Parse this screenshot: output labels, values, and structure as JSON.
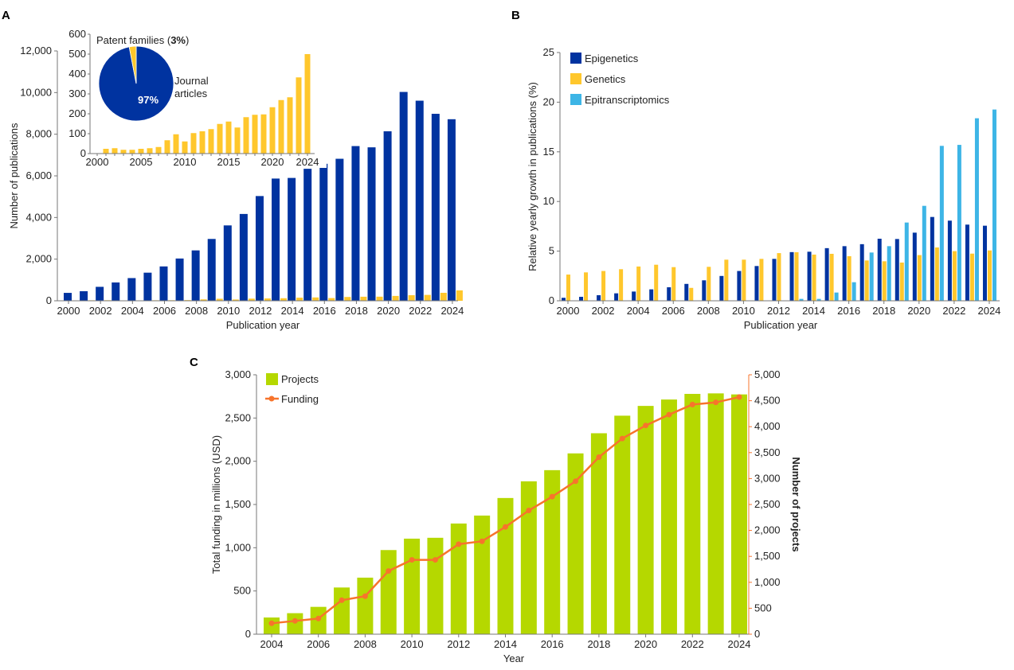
{
  "panels": {
    "a": "A",
    "b": "B",
    "c": "C"
  },
  "colors": {
    "navy": "#0033a0",
    "yellow": "#ffc72c",
    "lightblue": "#3db5e6",
    "green": "#b5d800",
    "orange": "#f7742c"
  },
  "chart_data": [
    {
      "id": "A",
      "type": "bar",
      "xlabel": "Publication year",
      "ylabel": "Number of publications",
      "ylim": [
        0,
        12000
      ],
      "yticks": [
        "0",
        "2,000",
        "4,000",
        "6,000",
        "8,000",
        "10,000",
        "12,000"
      ],
      "xticks": [
        "2000",
        "2002",
        "2004",
        "2006",
        "2008",
        "2010",
        "2012",
        "2014",
        "2016",
        "2018",
        "2020",
        "2022",
        "2024"
      ],
      "categories": [
        2000,
        2001,
        2002,
        2003,
        2004,
        2005,
        2006,
        2007,
        2008,
        2009,
        2010,
        2011,
        2012,
        2013,
        2014,
        2015,
        2016,
        2017,
        2018,
        2019,
        2020,
        2021,
        2022,
        2023,
        2024
      ],
      "series": [
        {
          "color": "#0033a0",
          "values": [
            380,
            460,
            670,
            880,
            1090,
            1350,
            1650,
            2030,
            2420,
            2970,
            3620,
            4170,
            5030,
            5870,
            5900,
            6340,
            6580,
            6820,
            7430,
            7370,
            8140,
            10030,
            9610,
            8980,
            8720
          ]
        },
        {
          "color": "#ffc72c",
          "values": [
            0,
            24,
            27,
            19,
            19,
            24,
            27,
            33,
            67,
            97,
            61,
            103,
            112,
            123,
            149,
            161,
            131,
            183,
            195,
            197,
            233,
            269,
            283,
            383,
            500
          ]
        }
      ],
      "grid": false
    },
    {
      "id": "A-inset-bar",
      "type": "bar",
      "ylim": [
        0,
        600
      ],
      "yticks": [
        "0",
        "100",
        "200",
        "300",
        "400",
        "500",
        "600"
      ],
      "xticks": [
        "2000",
        "2005",
        "2010",
        "2015",
        "2020",
        "2024"
      ],
      "categories": [
        2000,
        2001,
        2002,
        2003,
        2004,
        2005,
        2006,
        2007,
        2008,
        2009,
        2010,
        2011,
        2012,
        2013,
        2014,
        2015,
        2016,
        2017,
        2018,
        2019,
        2020,
        2021,
        2022,
        2023,
        2024
      ],
      "values": [
        0,
        24,
        27,
        19,
        19,
        24,
        27,
        33,
        67,
        97,
        61,
        103,
        112,
        123,
        149,
        161,
        131,
        183,
        195,
        197,
        233,
        269,
        283,
        383,
        500
      ],
      "color": "#ffc72c"
    },
    {
      "id": "A-inset-pie",
      "type": "pie",
      "slices": [
        {
          "label": "Journal articles",
          "label_lines": [
            "Journal",
            "articles"
          ],
          "value": 97,
          "value_label": "97%",
          "color": "#0033a0"
        },
        {
          "label": "Patent families",
          "label_prefix": "Patent families (",
          "value": 3,
          "value_label": "3%",
          "label_suffix": ")",
          "color": "#ffc72c"
        }
      ]
    },
    {
      "id": "B",
      "type": "bar",
      "xlabel": "Publication year",
      "ylabel": "Relative yearly growth in publications (%)",
      "ylim": [
        0,
        25
      ],
      "yticks": [
        "0",
        "5",
        "10",
        "15",
        "20",
        "25"
      ],
      "xticks": [
        "2000",
        "2002",
        "2004",
        "2006",
        "2008",
        "2010",
        "2012",
        "2014",
        "2016",
        "2018",
        "2020",
        "2022",
        "2024"
      ],
      "categories": [
        2000,
        2001,
        2002,
        2003,
        2004,
        2005,
        2006,
        2007,
        2008,
        2009,
        2010,
        2011,
        2012,
        2013,
        2014,
        2015,
        2016,
        2017,
        2018,
        2019,
        2020,
        2021,
        2022,
        2023,
        2024
      ],
      "legend": "top-left",
      "series": [
        {
          "name": "Epigenetics",
          "color": "#0033a0",
          "values": [
            0.3,
            0.4,
            0.56,
            0.75,
            0.93,
            1.15,
            1.36,
            1.7,
            2.06,
            2.5,
            3.0,
            3.5,
            4.22,
            4.9,
            4.94,
            5.3,
            5.5,
            5.7,
            6.25,
            6.22,
            6.86,
            8.44,
            8.07,
            7.67,
            7.56
          ]
        },
        {
          "name": "Genetics",
          "color": "#ffc72c",
          "values": [
            2.64,
            2.86,
            3.0,
            3.18,
            3.45,
            3.63,
            3.39,
            1.3,
            3.42,
            4.14,
            4.14,
            4.22,
            4.8,
            4.89,
            4.65,
            4.73,
            4.49,
            4.06,
            3.98,
            3.85,
            4.6,
            5.37,
            5.0,
            4.75,
            5.07
          ]
        },
        {
          "name": "Epitranscriptomics",
          "color": "#3db5e6",
          "values": [
            0,
            0,
            0,
            0,
            0,
            0,
            0,
            0,
            0,
            0,
            0,
            0,
            0,
            0.19,
            0.19,
            0.83,
            1.87,
            4.86,
            5.5,
            7.88,
            9.56,
            15.6,
            15.7,
            18.38,
            19.26
          ]
        }
      ]
    },
    {
      "id": "C",
      "type": "bar+line",
      "xlabel": "Year",
      "ylabel": "Total funding in millions (USD)",
      "ylabel_right": "Number of projects",
      "ylim": [
        0,
        3000
      ],
      "ylim_right": [
        0,
        5000
      ],
      "yticks": [
        "0",
        "500",
        "1,000",
        "1,500",
        "2,000",
        "2,500",
        "3,000"
      ],
      "yticks_right": [
        "0",
        "500",
        "1,000",
        "1,500",
        "2,000",
        "2,500",
        "3,000",
        "3,500",
        "4,000",
        "4,500",
        "5,000"
      ],
      "xticks": [
        "2004",
        "2006",
        "2008",
        "2010",
        "2012",
        "2014",
        "2016",
        "2018",
        "2020",
        "2022",
        "2024"
      ],
      "categories": [
        2004,
        2005,
        2006,
        2007,
        2008,
        2009,
        2010,
        2011,
        2012,
        2013,
        2014,
        2015,
        2016,
        2017,
        2018,
        2019,
        2020,
        2021,
        2022,
        2023,
        2024
      ],
      "legend": "top-left",
      "series": [
        {
          "name": "Projects",
          "type": "bar",
          "axis": "left",
          "color": "#b5d800",
          "values": [
            193,
            243,
            316,
            540,
            654,
            973,
            1105,
            1115,
            1280,
            1372,
            1575,
            1768,
            1897,
            2091,
            2324,
            2527,
            2640,
            2714,
            2779,
            2785,
            2773
          ]
        },
        {
          "name": "Funding",
          "type": "line",
          "axis": "right",
          "color": "#f7742c",
          "values": [
            210,
            256,
            302,
            655,
            732,
            1218,
            1433,
            1433,
            1735,
            1791,
            2068,
            2385,
            2651,
            2948,
            3413,
            3772,
            4023,
            4232,
            4427,
            4468,
            4570
          ]
        }
      ]
    }
  ]
}
